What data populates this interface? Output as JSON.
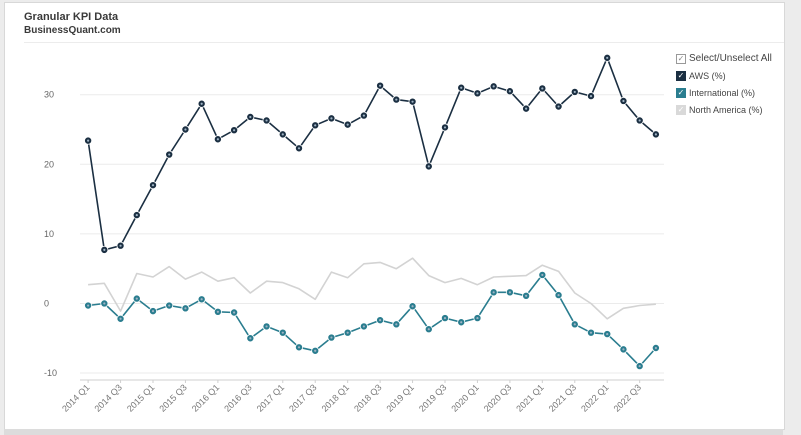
{
  "header": {
    "title": "Granular KPI Data",
    "subtitle": "BusinessQuant.com"
  },
  "legend": {
    "select_all_label": "Select/Unselect All",
    "check_glyph": "✓",
    "items": [
      {
        "label": "AWS (%)",
        "color": "#1b2f42",
        "checked": true
      },
      {
        "label": "International (%)",
        "color": "#2a7d8f",
        "checked": true
      },
      {
        "label": "North America (%)",
        "color": "#c9c9c9",
        "checked": false
      }
    ]
  },
  "chart_data": {
    "type": "line",
    "title": "Granular KPI Data",
    "xlabel": "",
    "ylabel": "",
    "ylim": [
      -11,
      37
    ],
    "yticks": [
      -10,
      0,
      10,
      20,
      30
    ],
    "grid": true,
    "categories": [
      "2014 Q1",
      "2014 Q2",
      "2014 Q3",
      "2014 Q4",
      "2015 Q1",
      "2015 Q2",
      "2015 Q3",
      "2015 Q4",
      "2016 Q1",
      "2016 Q2",
      "2016 Q3",
      "2016 Q4",
      "2017 Q1",
      "2017 Q2",
      "2017 Q3",
      "2017 Q4",
      "2018 Q1",
      "2018 Q2",
      "2018 Q3",
      "2018 Q4",
      "2019 Q1",
      "2019 Q2",
      "2019 Q3",
      "2019 Q4",
      "2020 Q1",
      "2020 Q2",
      "2020 Q3",
      "2020 Q4",
      "2021 Q1",
      "2021 Q2",
      "2021 Q3",
      "2021 Q4",
      "2022 Q1",
      "2022 Q2",
      "2022 Q3",
      "2022 Q4"
    ],
    "xtick_labels": [
      "2014 Q1",
      "2014 Q3",
      "2015 Q1",
      "2015 Q3",
      "2016 Q1",
      "2016 Q3",
      "2017 Q1",
      "2017 Q3",
      "2018 Q1",
      "2018 Q3",
      "2019 Q1",
      "2019 Q3",
      "2020 Q1",
      "2020 Q3",
      "2021 Q1",
      "2021 Q3",
      "2022 Q1",
      "2022 Q3"
    ],
    "series": [
      {
        "name": "AWS (%)",
        "color": "#1b2f42",
        "markers": true,
        "values": [
          23.4,
          7.7,
          8.3,
          12.7,
          17.0,
          21.4,
          25.0,
          28.7,
          23.6,
          24.9,
          26.8,
          26.3,
          24.3,
          22.3,
          25.6,
          26.6,
          25.7,
          27.0,
          31.3,
          29.3,
          29.0,
          19.7,
          25.3,
          31.0,
          30.2,
          31.2,
          30.5,
          28.0,
          30.9,
          28.3,
          30.4,
          29.8,
          35.3,
          29.1,
          26.3,
          24.3
        ]
      },
      {
        "name": "International (%)",
        "color": "#2a7d8f",
        "markers": true,
        "values": [
          -0.3,
          0.0,
          -2.2,
          0.7,
          -1.1,
          -0.3,
          -0.7,
          0.6,
          -1.2,
          -1.3,
          -5.0,
          -3.3,
          -4.2,
          -6.3,
          -6.8,
          -4.9,
          -4.2,
          -3.3,
          -2.4,
          -3.0,
          -0.4,
          -3.7,
          -2.1,
          -2.7,
          -2.1,
          1.6,
          1.6,
          1.1,
          4.1,
          1.2,
          -3.0,
          -4.2,
          -4.4,
          -6.6,
          -9.0,
          -6.4
        ]
      },
      {
        "name": "North America (%)",
        "color": "#d3d3d3",
        "markers": false,
        "values": [
          2.7,
          2.9,
          -1.1,
          4.3,
          3.8,
          5.3,
          3.5,
          4.5,
          3.2,
          3.7,
          1.5,
          3.2,
          3.0,
          2.1,
          0.6,
          4.5,
          3.7,
          5.7,
          5.9,
          5.0,
          6.5,
          4.0,
          3.0,
          3.6,
          2.7,
          3.8,
          3.9,
          4.0,
          5.5,
          4.6,
          1.5,
          0.0,
          -2.2,
          -0.7,
          -0.3,
          -0.1
        ]
      }
    ]
  }
}
